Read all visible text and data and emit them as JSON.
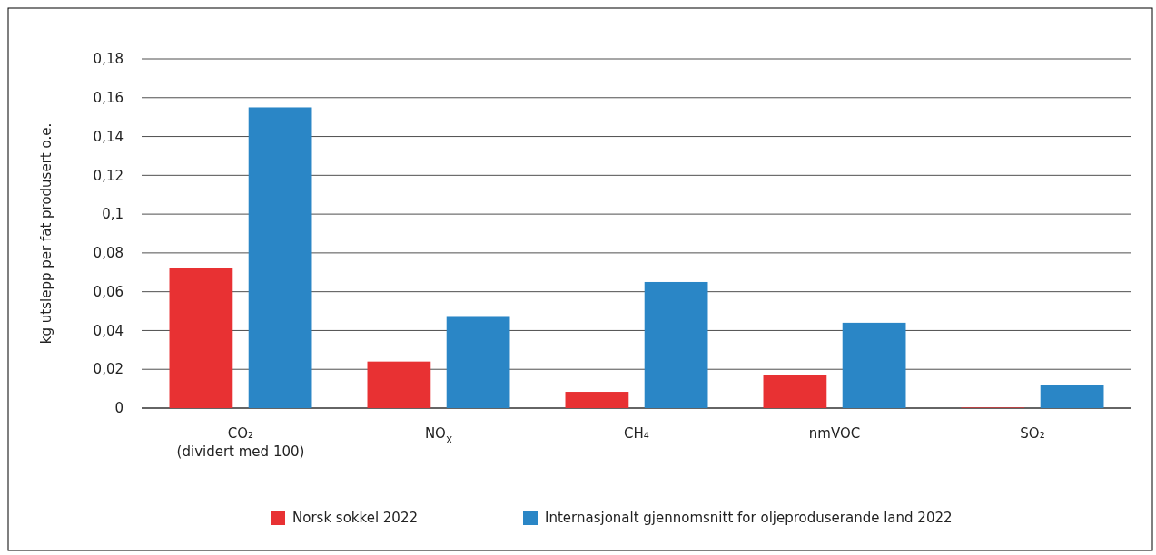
{
  "chart_data": {
    "type": "bar",
    "ylabel": "kg utslepp per fat produsert o.e.",
    "categories": [
      "CO₂\n(dividert med 100)",
      "NO$_{X}$",
      "CH₄",
      "nmVOC",
      "SO₂"
    ],
    "series": [
      {
        "name": "Norsk sokkel 2022",
        "color": "#e83133",
        "values": [
          0.072,
          0.024,
          0.0084,
          0.017,
          0.0003
        ]
      },
      {
        "name": "Internasjonalt gjennomsnitt for oljeproduserande land 2022",
        "color": "#2a86c6",
        "values": [
          0.155,
          0.047,
          0.065,
          0.044,
          0.012
        ]
      }
    ],
    "ylim": [
      0,
      0.18
    ],
    "yticks": [
      0,
      {
        "value": 0.02,
        "label": "0,02"
      },
      {
        "value": 0.04,
        "label": "0,04"
      },
      {
        "value": 0.06,
        "label": "0,06"
      },
      {
        "value": 0.08,
        "label": "0,08"
      },
      {
        "value": 0.1,
        "label": "0,1"
      },
      {
        "value": 0.12,
        "label": "0,12"
      },
      {
        "value": 0.14,
        "label": "0,14"
      },
      {
        "value": 0.16,
        "label": "0,16"
      },
      {
        "value": 0.18,
        "label": "0,18"
      }
    ],
    "grid": "y",
    "legend": "bottom"
  }
}
